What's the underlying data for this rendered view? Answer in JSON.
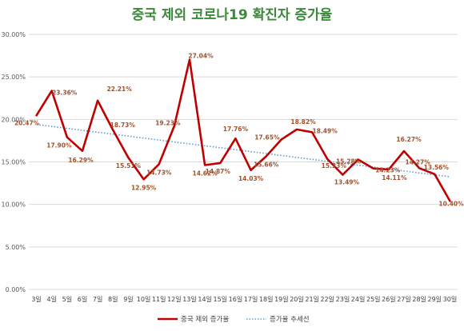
{
  "chart_data": {
    "type": "line",
    "title": "중국 제외 코로나19 확진자 증가율",
    "categories": [
      "3일",
      "4일",
      "5일",
      "6일",
      "7일",
      "8일",
      "9일",
      "10일",
      "11일",
      "12일",
      "13일",
      "14일",
      "15일",
      "16일",
      "17일",
      "18일",
      "19일",
      "20일",
      "21일",
      "22일",
      "23일",
      "24일",
      "25일",
      "26일",
      "27일",
      "28일",
      "29일",
      "30일"
    ],
    "series": [
      {
        "name": "중국 제외 증가율",
        "color": "#c00000",
        "values": [
          20.47,
          23.36,
          17.9,
          16.29,
          22.21,
          18.73,
          15.51,
          12.95,
          14.73,
          19.23,
          27.04,
          14.62,
          14.87,
          17.76,
          14.03,
          15.66,
          17.65,
          18.82,
          18.49,
          15.33,
          13.49,
          15.28,
          14.23,
          14.11,
          16.27,
          14.27,
          13.56,
          10.4
        ],
        "labels": [
          "20.47%",
          "23.36%",
          "17.90%",
          "16.29%",
          "22.21%",
          "18.73%",
          "15.51%",
          "12.95%",
          "14.73%",
          "19.23%",
          "27.04%",
          "14.62%",
          "14.87%",
          "17.76%",
          "14.03%",
          "15.66%",
          "17.65%",
          "18.82%",
          "18.49%",
          "15.33%",
          "13.49%",
          "15.28%",
          "14.23%",
          "14.11%",
          "16.27%",
          "14.27%",
          "13.56%",
          "10.40%"
        ]
      },
      {
        "name": "증가율 추세선",
        "color": "#5b9bd5",
        "style": "dotted",
        "trend": {
          "start": 19.4,
          "end": 13.25
        }
      }
    ],
    "ylim": [
      0,
      30
    ],
    "yticks": [
      "0.00%",
      "5.00%",
      "10.00%",
      "15.00%",
      "20.00%",
      "25.00%",
      "30.00%"
    ],
    "grid": true,
    "legend_position": "bottom"
  }
}
